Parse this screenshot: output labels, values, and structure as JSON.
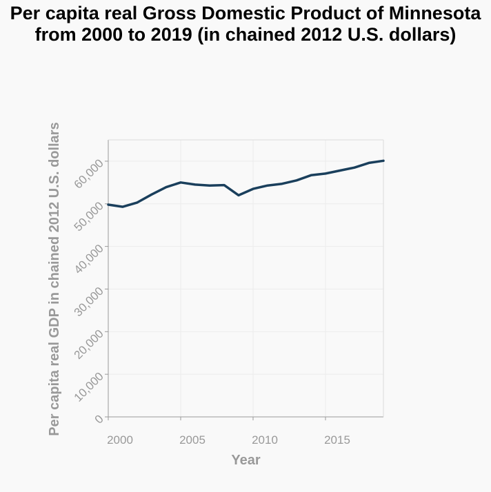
{
  "chart_data": {
    "type": "line",
    "title": "Per capita real Gross Domestic Product of Minnesota from 2000 to 2019 (in chained 2012 U.S. dollars)",
    "xlabel": "Year",
    "ylabel": "Per capita real GDP in chained 2012 U.S. dollars",
    "xlim": [
      2000,
      2019
    ],
    "ylim": [
      0,
      65000
    ],
    "x_ticks": [
      2000,
      2005,
      2010,
      2015
    ],
    "x_tick_labels": [
      "2000",
      "2005",
      "2010",
      "2015"
    ],
    "y_ticks": [
      0,
      10000,
      20000,
      30000,
      40000,
      50000,
      60000
    ],
    "y_tick_labels": [
      "0",
      "10,000",
      "20,000",
      "30,000",
      "40,000",
      "50,000",
      "60,000"
    ],
    "grid": true,
    "line_color": "#1a3f5c",
    "series": [
      {
        "x": [
          2000,
          2001,
          2002,
          2003,
          2004,
          2005,
          2006,
          2007,
          2008,
          2009,
          2010,
          2011,
          2012,
          2013,
          2014,
          2015,
          2016,
          2017,
          2018,
          2019
        ],
        "values": [
          49800,
          49300,
          50300,
          52200,
          53900,
          55000,
          54500,
          54300,
          54400,
          52000,
          53500,
          54300,
          54700,
          55500,
          56700,
          57100,
          57800,
          58500,
          59600,
          60100
        ]
      }
    ]
  }
}
